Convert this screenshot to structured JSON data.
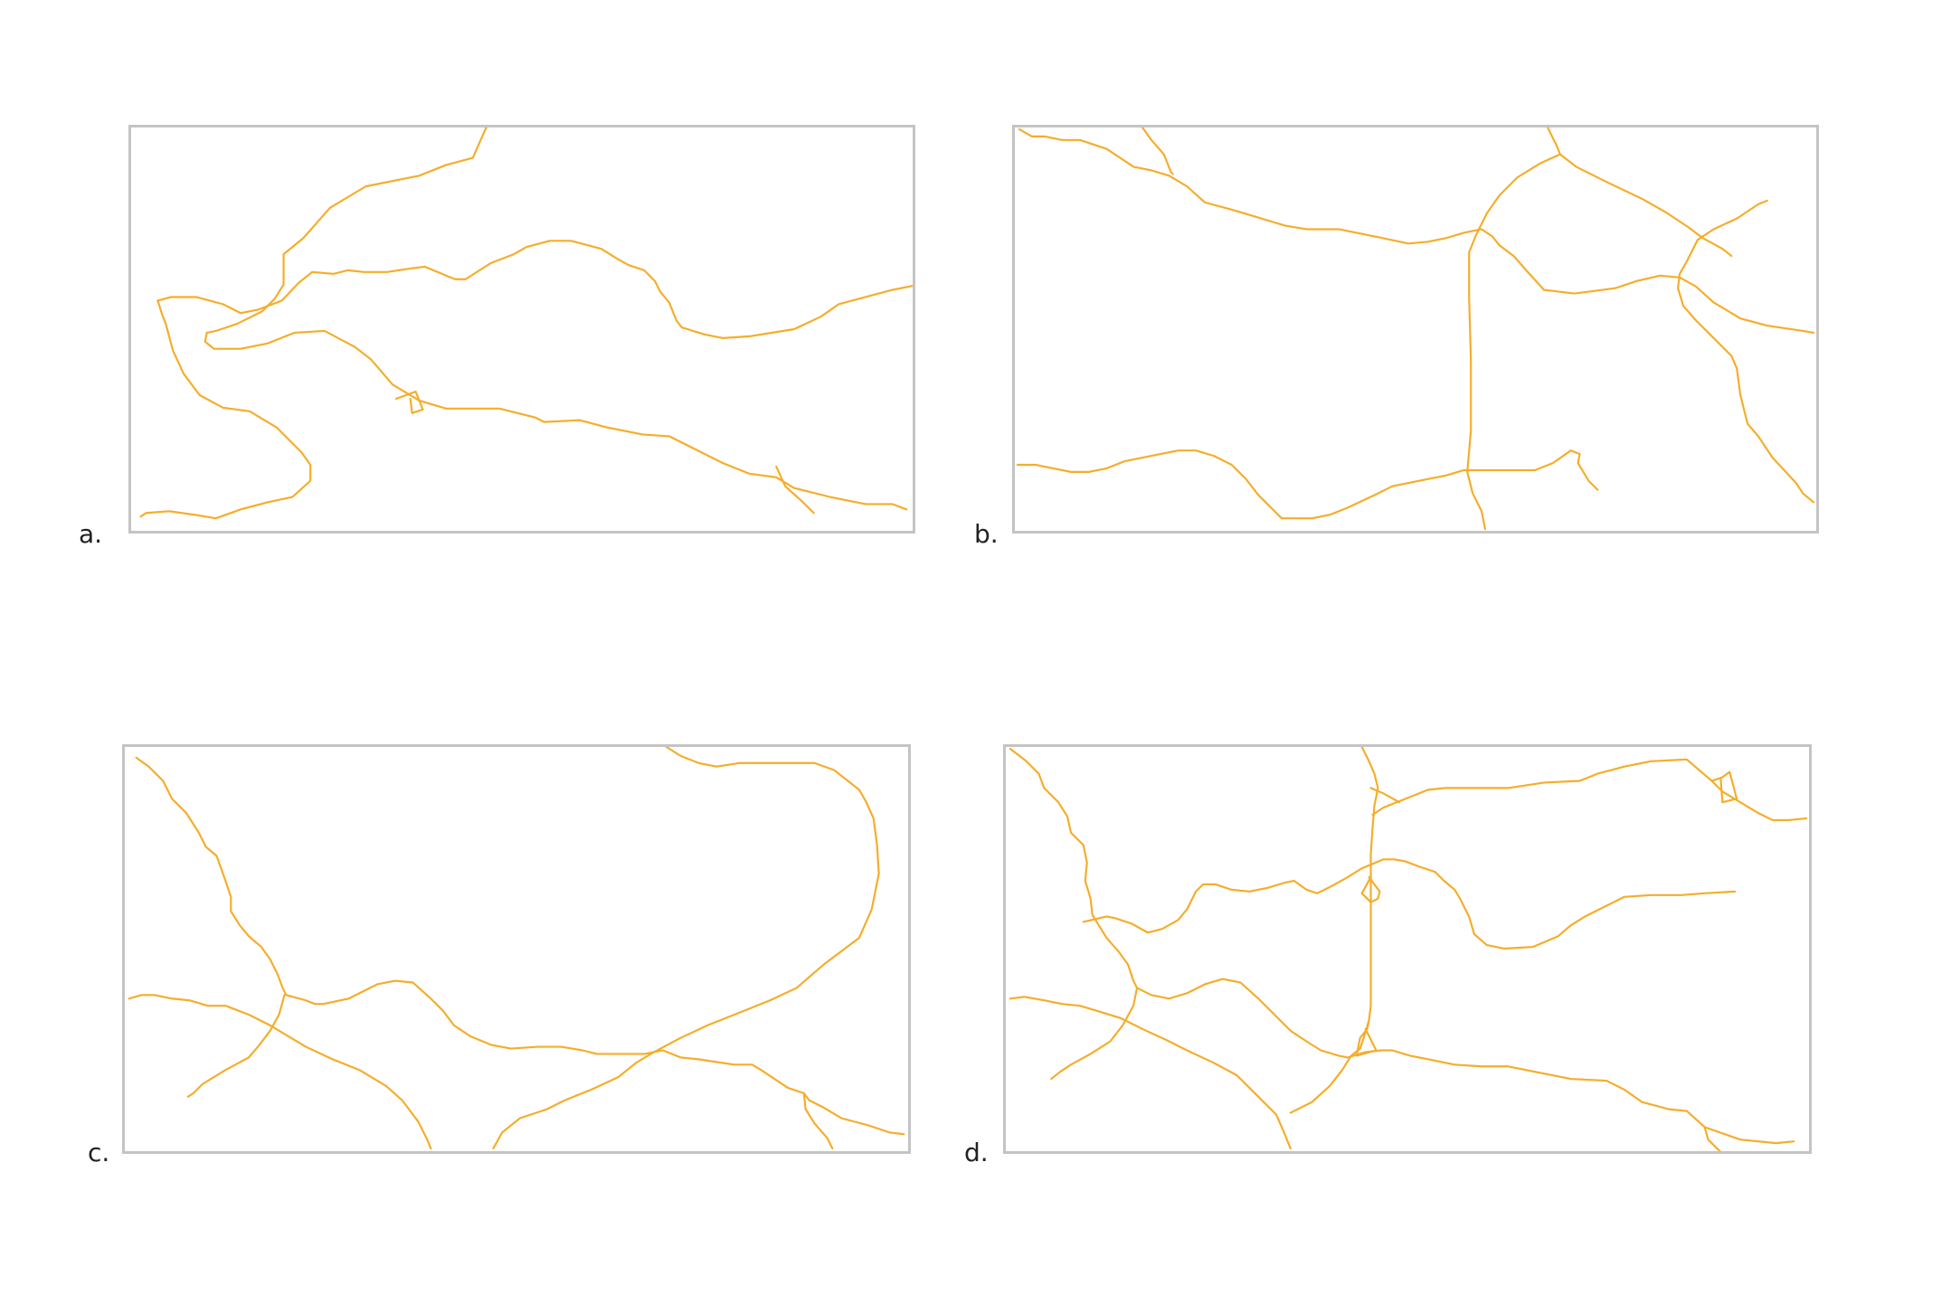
{
  "colors": {
    "road": "#f5ad2a",
    "frame": "#c4c4c4",
    "label": "#222222",
    "background": "#ffffff"
  },
  "panels": [
    {
      "id": "a",
      "label": "a."
    },
    {
      "id": "b",
      "label": "b."
    },
    {
      "id": "c",
      "label": "c."
    },
    {
      "id": "d",
      "label": "d."
    }
  ]
}
